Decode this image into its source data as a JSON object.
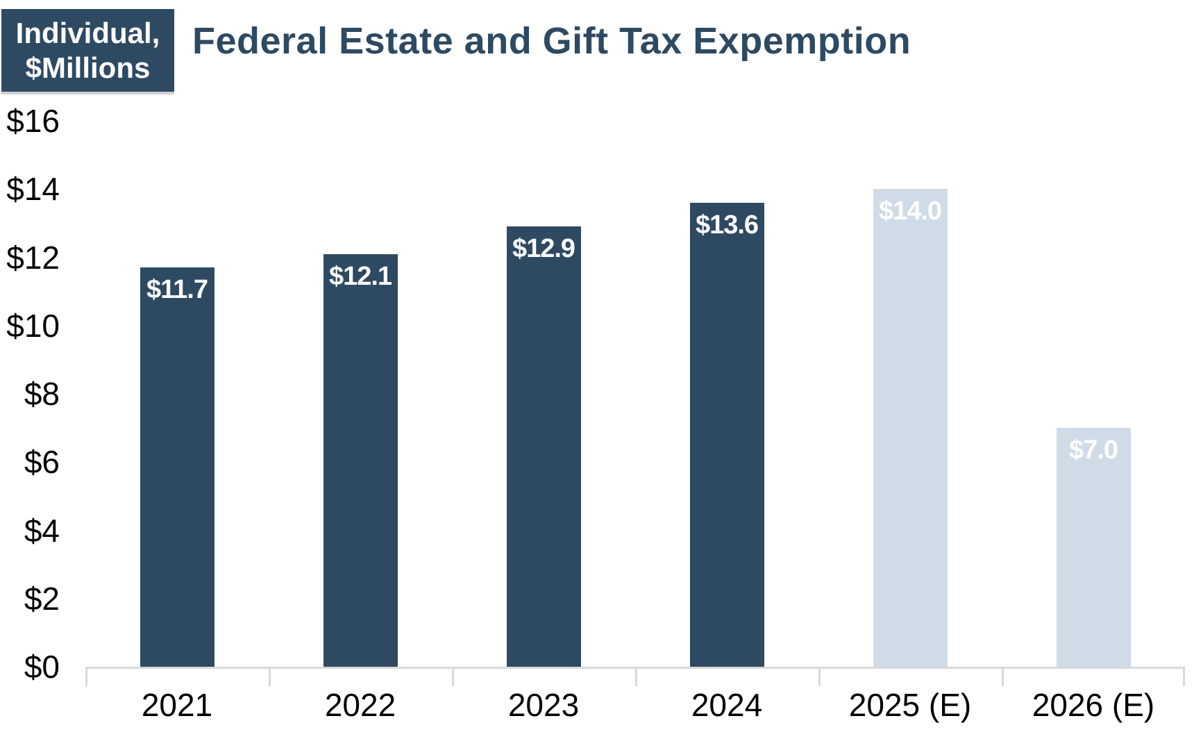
{
  "badge": {
    "line1": "Individual,",
    "line2": "$Millions"
  },
  "chart_data": {
    "type": "bar",
    "title": "Federal Estate and Gift Tax Expemption",
    "unit_note": "Individual, $Millions",
    "categories": [
      "2021",
      "2022",
      "2023",
      "2024",
      "2025 (E)",
      "2026 (E)"
    ],
    "values": [
      11.7,
      12.1,
      12.9,
      13.6,
      14.0,
      7.0
    ],
    "bar_value_labels": [
      "$11.7",
      "$12.1",
      "$12.9",
      "$13.6",
      "$14.0",
      "$7.0"
    ],
    "estimated_flags": [
      false,
      false,
      false,
      false,
      true,
      true
    ],
    "xlabel": "",
    "ylabel": "",
    "ylim": [
      0,
      16
    ],
    "ytick_step": 2,
    "ytick_labels": [
      "$0",
      "$2",
      "$4",
      "$6",
      "$8",
      "$10",
      "$12",
      "$14",
      "$16"
    ],
    "grid": false,
    "legend": "none",
    "colors": {
      "actual_bar": "#2e4a62",
      "estimate_bar": "#cfdce8",
      "bar_value_text": "#ffffff",
      "title_text": "#2e4a62",
      "badge_background": "#2e4a62",
      "badge_text": "#ffffff",
      "axis_text": "#000000",
      "axis_line": "#d9d9d9"
    }
  }
}
